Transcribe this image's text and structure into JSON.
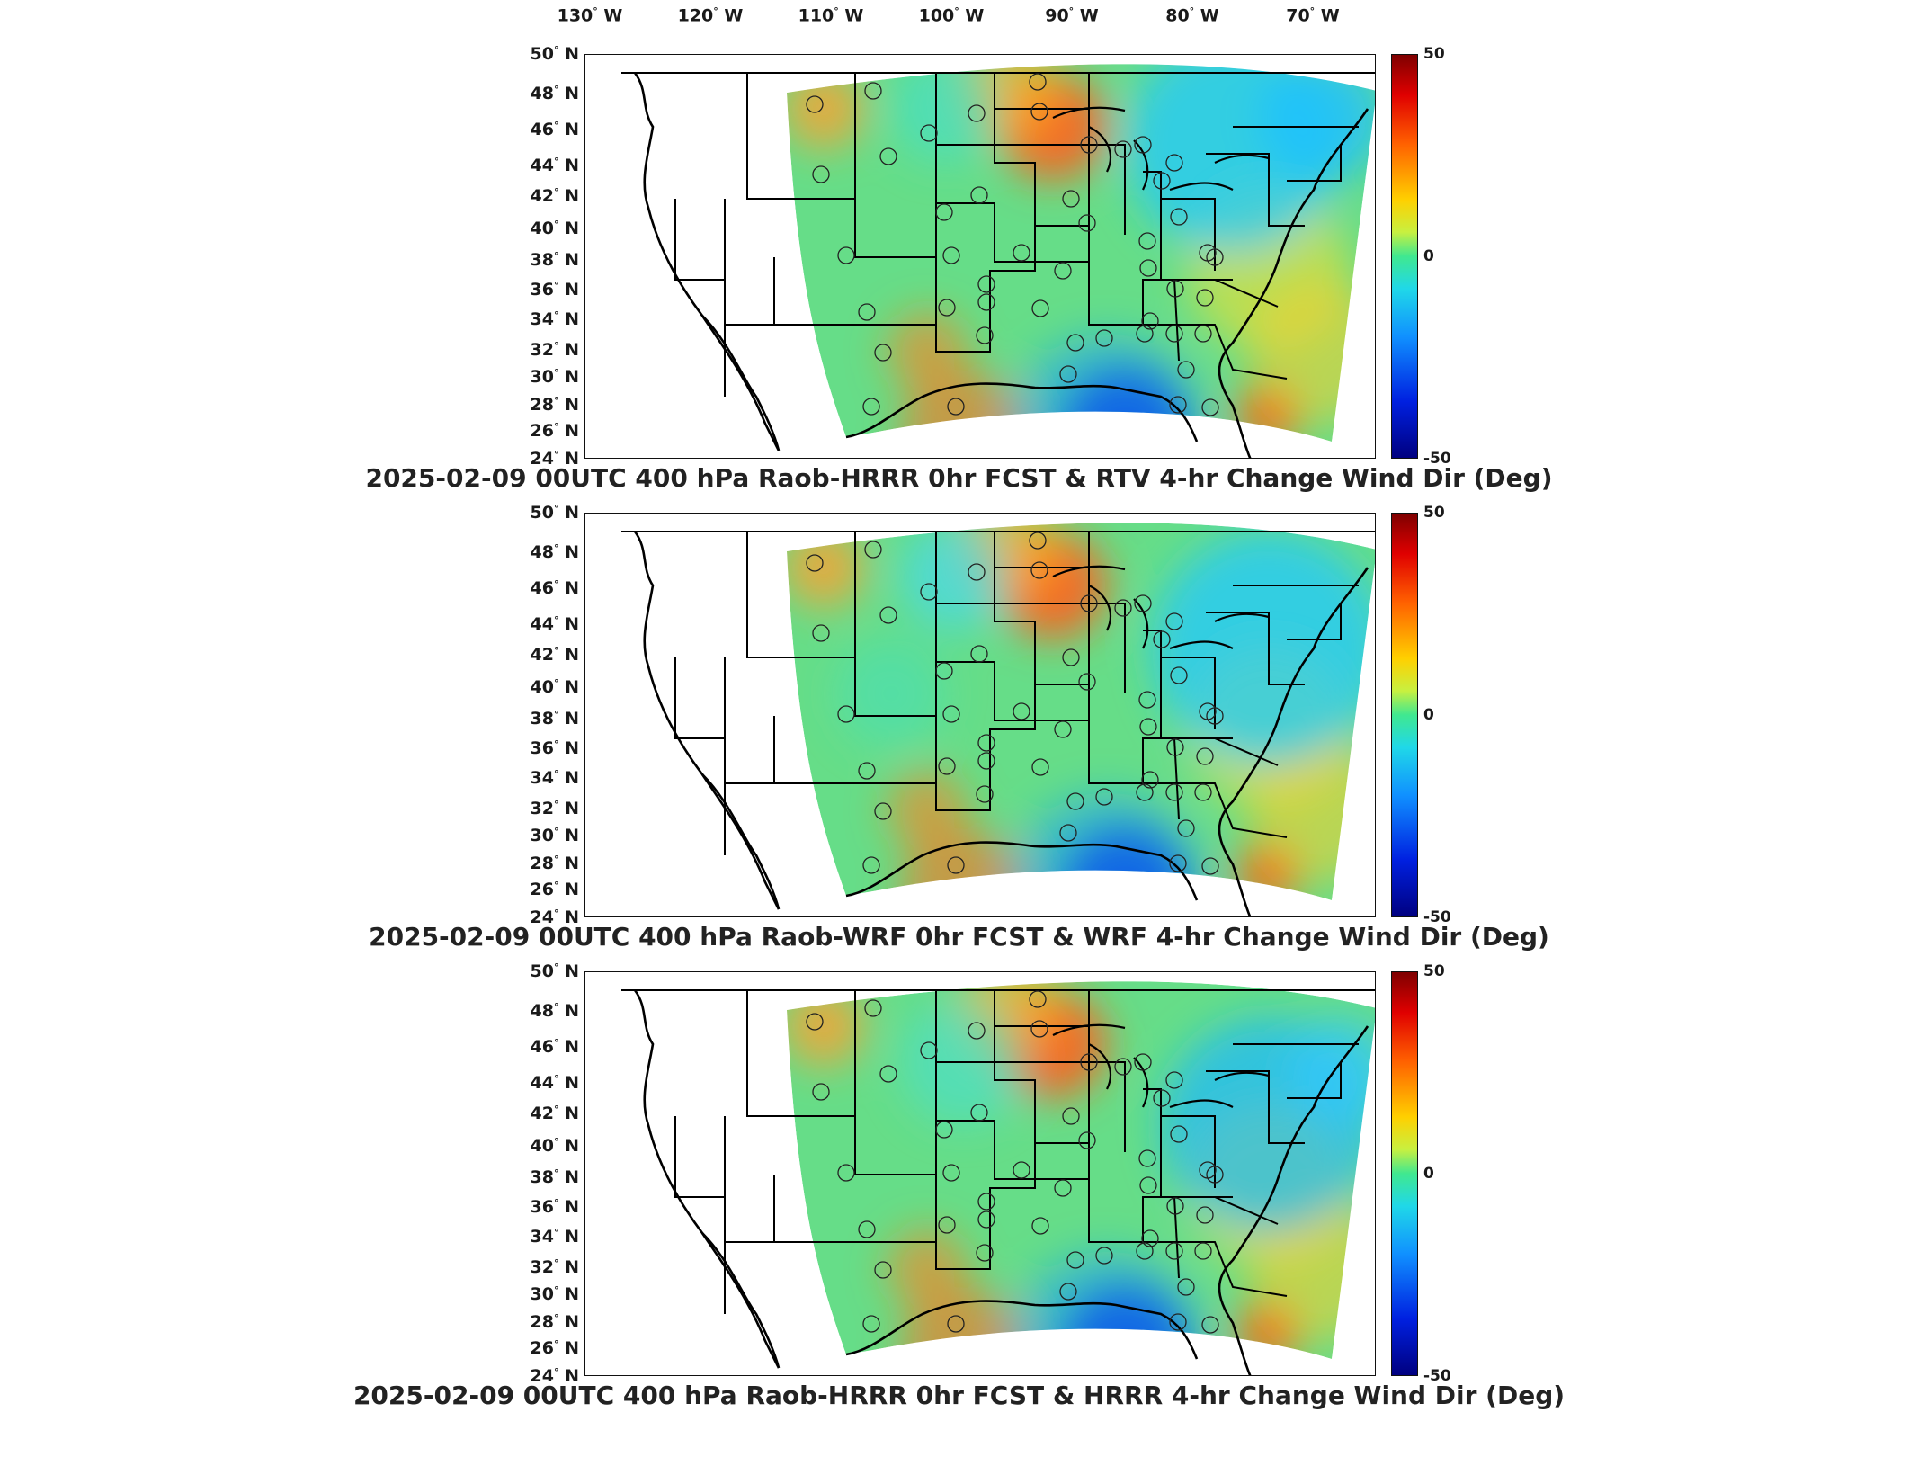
{
  "lon_labels": [
    {
      "deg": "130",
      "hem": "W"
    },
    {
      "deg": "120",
      "hem": "W"
    },
    {
      "deg": "110",
      "hem": "W"
    },
    {
      "deg": "100",
      "hem": "W"
    },
    {
      "deg": "90",
      "hem": "W"
    },
    {
      "deg": "80",
      "hem": "W"
    },
    {
      "deg": "70",
      "hem": "W"
    }
  ],
  "lat_labels": [
    {
      "deg": "50",
      "hem": "N"
    },
    {
      "deg": "48",
      "hem": "N"
    },
    {
      "deg": "46",
      "hem": "N"
    },
    {
      "deg": "44",
      "hem": "N"
    },
    {
      "deg": "42",
      "hem": "N"
    },
    {
      "deg": "40",
      "hem": "N"
    },
    {
      "deg": "38",
      "hem": "N"
    },
    {
      "deg": "36",
      "hem": "N"
    },
    {
      "deg": "34",
      "hem": "N"
    },
    {
      "deg": "32",
      "hem": "N"
    },
    {
      "deg": "30",
      "hem": "N"
    },
    {
      "deg": "28",
      "hem": "N"
    },
    {
      "deg": "26",
      "hem": "N"
    },
    {
      "deg": "24",
      "hem": "N"
    }
  ],
  "colorbar": {
    "max": "50",
    "mid": "0",
    "min": "-50"
  },
  "panels": [
    {
      "title": "2025-02-09 00UTC 400 hPa Raob-HRRR 0hr FCST & RTV 4-hr Change Wind Dir (Deg)"
    },
    {
      "title": "2025-02-09 00UTC 400 hPa Raob-WRF 0hr FCST & WRF 4-hr Change Wind Dir (Deg)"
    },
    {
      "title": "2025-02-09 00UTC 400 hPa Raob-HRRR 0hr FCST & HRRR 4-hr Change Wind Dir (Deg)"
    }
  ]
}
